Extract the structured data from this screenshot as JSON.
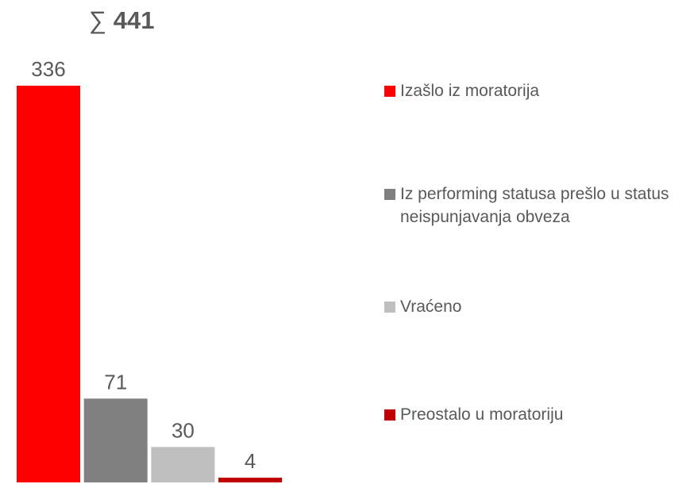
{
  "chart_data": {
    "type": "bar",
    "total_symbol": "∑",
    "total": 441,
    "series": [
      {
        "name": "Izašlo iz moratorija",
        "color": "#ff0000",
        "values": [
          336
        ]
      },
      {
        "name": "Iz performing statusa prešlo u status neispunjavanja obveza",
        "color": "#808080",
        "values": [
          71
        ]
      },
      {
        "name": "Vraćeno",
        "color": "#bfbfbf",
        "values": [
          30
        ]
      },
      {
        "name": "Preostalo u moratoriju",
        "color": "#c00000",
        "values": [
          4
        ]
      }
    ]
  }
}
